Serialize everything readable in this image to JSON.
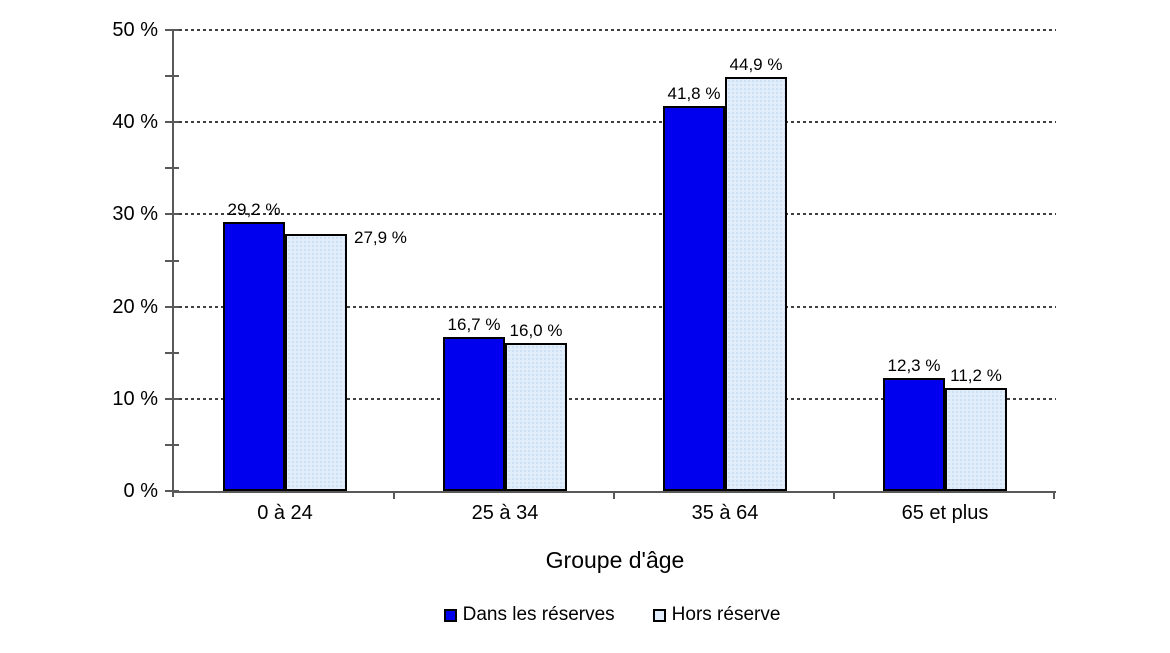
{
  "page": {
    "background": "#FFFFFF"
  },
  "chart_data": {
    "type": "bar",
    "title": "",
    "xlabel": "Groupe d'âge",
    "ylabel": "",
    "categories": [
      "0 à 24",
      "25 à 34",
      "35 à 64",
      "65 et plus"
    ],
    "series": [
      {
        "name": "Dans les réserves",
        "color": "#0000EE",
        "values": [
          29.2,
          16.7,
          41.8,
          12.3
        ],
        "value_labels": [
          "29,2 %",
          "16,7 %",
          "41,8 %",
          "12,3 %"
        ],
        "label_positions": [
          "above",
          "above",
          "above",
          "above"
        ]
      },
      {
        "name": "Hors réserve",
        "color": "#E1EDFA",
        "pattern_dot_color": "#C8DDF2",
        "values": [
          27.9,
          16.0,
          44.9,
          11.2
        ],
        "value_labels": [
          "27,9 %",
          "16,0 %",
          "44,9 %",
          "11,2 %"
        ],
        "label_positions": [
          "right",
          "above",
          "above",
          "above"
        ]
      }
    ],
    "ylim": [
      0,
      50
    ],
    "y_tick_step": 10,
    "y_minor_tick_step": 5,
    "y_tick_labels": [
      "0 %",
      "10 %",
      "20 %",
      "30 %",
      "40 %",
      "50 %"
    ],
    "grid": "horizontal-dotted",
    "legend_position": "bottom",
    "axis_color": "#595959",
    "gridline_color": "#404040",
    "bar_border_color": "#000000",
    "text_color": "#000000"
  }
}
